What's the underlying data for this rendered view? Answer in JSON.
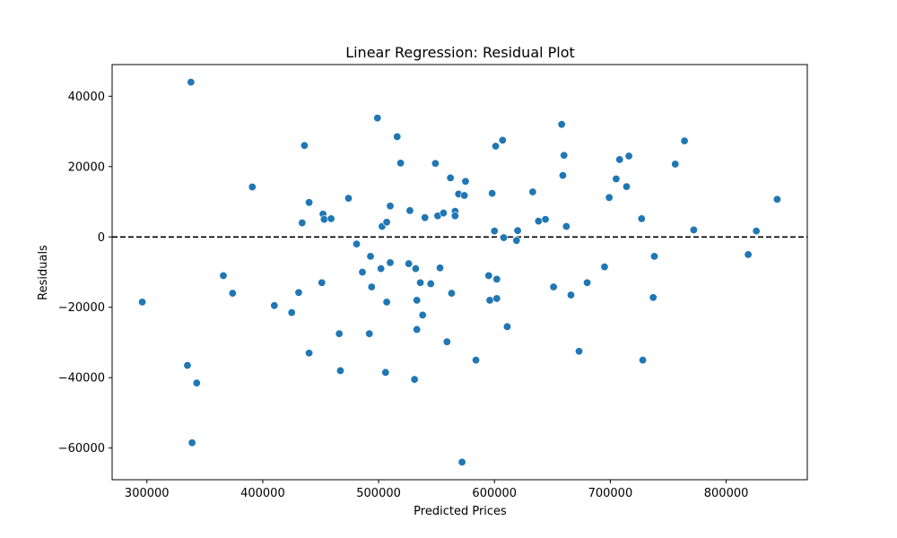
{
  "chart_data": {
    "type": "scatter",
    "title": "Linear Regression: Residual Plot",
    "xlabel": "Predicted Prices",
    "ylabel": "Residuals",
    "xlim": [
      270000,
      870000
    ],
    "ylim": [
      -69000,
      49000
    ],
    "xticks": [
      300000,
      400000,
      500000,
      600000,
      700000,
      800000
    ],
    "yticks": [
      -60000,
      -40000,
      -20000,
      0,
      20000,
      40000
    ],
    "reference_line": {
      "y": 0,
      "style": "dashed",
      "color": "#000000"
    },
    "point_color": "#1f77b4",
    "grid": false,
    "points": [
      {
        "x": 296000,
        "y": -18500
      },
      {
        "x": 335000,
        "y": -36500
      },
      {
        "x": 338000,
        "y": 44000
      },
      {
        "x": 339000,
        "y": -58500
      },
      {
        "x": 343000,
        "y": -41500
      },
      {
        "x": 366000,
        "y": -11000
      },
      {
        "x": 374000,
        "y": -16000
      },
      {
        "x": 391000,
        "y": 14200
      },
      {
        "x": 410000,
        "y": -19500
      },
      {
        "x": 425000,
        "y": -21500
      },
      {
        "x": 431000,
        "y": -15800
      },
      {
        "x": 434000,
        "y": 4000
      },
      {
        "x": 436000,
        "y": 26000
      },
      {
        "x": 440000,
        "y": 9800
      },
      {
        "x": 440000,
        "y": -33000
      },
      {
        "x": 451000,
        "y": -13000
      },
      {
        "x": 452000,
        "y": 6500
      },
      {
        "x": 453000,
        "y": 5000
      },
      {
        "x": 459000,
        "y": 5200
      },
      {
        "x": 466000,
        "y": -27500
      },
      {
        "x": 467000,
        "y": -38000
      },
      {
        "x": 474000,
        "y": 11000
      },
      {
        "x": 481000,
        "y": -2000
      },
      {
        "x": 486000,
        "y": -10000
      },
      {
        "x": 492000,
        "y": -27500
      },
      {
        "x": 493000,
        "y": -5500
      },
      {
        "x": 494000,
        "y": -14200
      },
      {
        "x": 499000,
        "y": 33800
      },
      {
        "x": 502000,
        "y": -9000
      },
      {
        "x": 503000,
        "y": 3000
      },
      {
        "x": 506000,
        "y": -38500
      },
      {
        "x": 507000,
        "y": 4200
      },
      {
        "x": 507000,
        "y": -18500
      },
      {
        "x": 510000,
        "y": 8800
      },
      {
        "x": 510000,
        "y": -7300
      },
      {
        "x": 516000,
        "y": 28500
      },
      {
        "x": 519000,
        "y": 21000
      },
      {
        "x": 526000,
        "y": -7600
      },
      {
        "x": 527000,
        "y": 7500
      },
      {
        "x": 531000,
        "y": -40500
      },
      {
        "x": 532000,
        "y": -9000
      },
      {
        "x": 533000,
        "y": -18000
      },
      {
        "x": 533000,
        "y": -26300
      },
      {
        "x": 536000,
        "y": -13000
      },
      {
        "x": 538000,
        "y": -22200
      },
      {
        "x": 540000,
        "y": 5500
      },
      {
        "x": 545000,
        "y": -13300
      },
      {
        "x": 549000,
        "y": 20900
      },
      {
        "x": 551000,
        "y": 6000
      },
      {
        "x": 553000,
        "y": -8800
      },
      {
        "x": 556000,
        "y": 6800
      },
      {
        "x": 559000,
        "y": -29800
      },
      {
        "x": 562000,
        "y": 16800
      },
      {
        "x": 563000,
        "y": -16000
      },
      {
        "x": 566000,
        "y": 7300
      },
      {
        "x": 566000,
        "y": 6000
      },
      {
        "x": 569000,
        "y": 12200
      },
      {
        "x": 572000,
        "y": -64000
      },
      {
        "x": 574000,
        "y": 11800
      },
      {
        "x": 575000,
        "y": 15800
      },
      {
        "x": 584000,
        "y": -35000
      },
      {
        "x": 595000,
        "y": -11000
      },
      {
        "x": 596000,
        "y": -18000
      },
      {
        "x": 598000,
        "y": 12400
      },
      {
        "x": 600000,
        "y": 1700
      },
      {
        "x": 601000,
        "y": 25800
      },
      {
        "x": 602000,
        "y": -12000
      },
      {
        "x": 602000,
        "y": -17500
      },
      {
        "x": 607000,
        "y": 27500
      },
      {
        "x": 608000,
        "y": -200
      },
      {
        "x": 611000,
        "y": -25500
      },
      {
        "x": 619000,
        "y": -1000
      },
      {
        "x": 620000,
        "y": 1800
      },
      {
        "x": 633000,
        "y": 12800
      },
      {
        "x": 638000,
        "y": 4500
      },
      {
        "x": 644000,
        "y": 5000
      },
      {
        "x": 651000,
        "y": -14200
      },
      {
        "x": 658000,
        "y": 32000
      },
      {
        "x": 659000,
        "y": 17500
      },
      {
        "x": 660000,
        "y": 23200
      },
      {
        "x": 662000,
        "y": 3000
      },
      {
        "x": 666000,
        "y": -16500
      },
      {
        "x": 673000,
        "y": -32500
      },
      {
        "x": 680000,
        "y": -13000
      },
      {
        "x": 695000,
        "y": -8500
      },
      {
        "x": 699000,
        "y": 11200
      },
      {
        "x": 705000,
        "y": 16500
      },
      {
        "x": 708000,
        "y": 22000
      },
      {
        "x": 714000,
        "y": 14300
      },
      {
        "x": 716000,
        "y": 23000
      },
      {
        "x": 727000,
        "y": 5200
      },
      {
        "x": 728000,
        "y": -35000
      },
      {
        "x": 737000,
        "y": -17200
      },
      {
        "x": 738000,
        "y": -5500
      },
      {
        "x": 756000,
        "y": 20700
      },
      {
        "x": 764000,
        "y": 27300
      },
      {
        "x": 772000,
        "y": 2000
      },
      {
        "x": 819000,
        "y": -5000
      },
      {
        "x": 826000,
        "y": 1700
      },
      {
        "x": 844000,
        "y": 10700
      }
    ]
  }
}
